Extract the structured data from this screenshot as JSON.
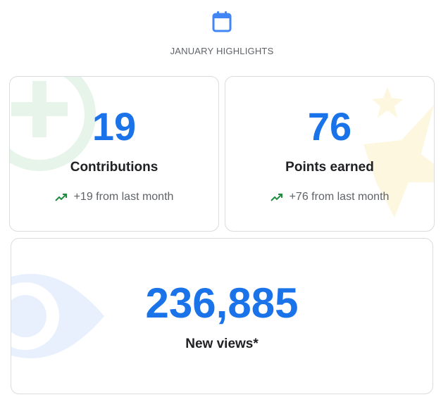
{
  "header": {
    "icon": "calendar-icon",
    "title": "JANUARY HIGHLIGHTS"
  },
  "cards": {
    "contributions": {
      "value": "19",
      "label": "Contributions",
      "trend_icon": "trending-up-icon",
      "trend_text": "+19 from last month"
    },
    "points": {
      "value": "76",
      "label": "Points earned",
      "trend_icon": "trending-up-icon",
      "trend_text": "+76 from last month"
    },
    "views": {
      "value": "236,885",
      "label": "New views*"
    }
  },
  "colors": {
    "accent": "#1a73e8",
    "trend_green": "#1e8e3e",
    "text_primary": "#202124",
    "text_secondary": "#5f6368",
    "border": "#dadce0"
  }
}
